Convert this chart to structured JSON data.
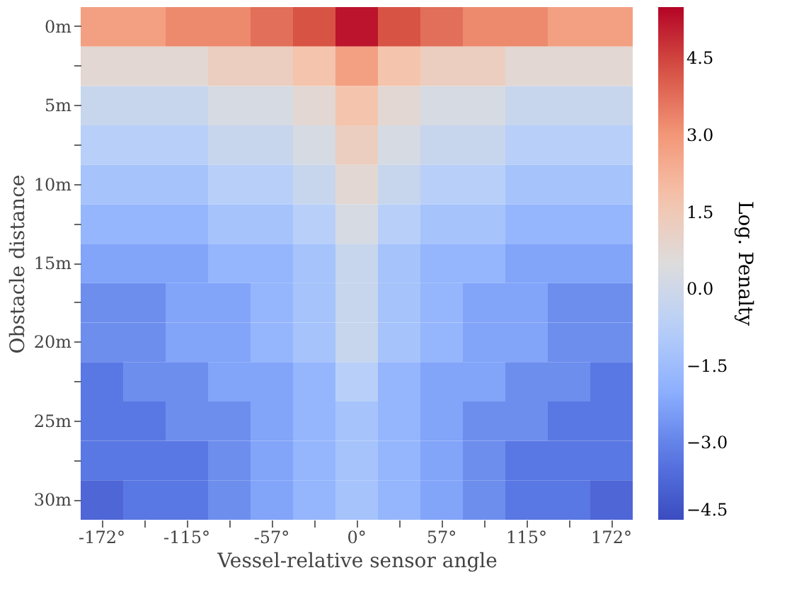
{
  "chart_data": {
    "type": "heatmap",
    "xlabel": "Vessel-relative sensor angle",
    "ylabel": "Obstacle distance",
    "clabel": "Log. Penalty",
    "categories": [
      "-172°",
      null,
      "-115°",
      null,
      "-57°",
      null,
      "0°",
      null,
      "57°",
      null,
      "115°",
      null,
      "172°"
    ],
    "y_categories": [
      "0m",
      null,
      "5m",
      null,
      "10m",
      null,
      "15m",
      null,
      "20m",
      null,
      "25m",
      null,
      "30m"
    ],
    "cells": [
      [
        2.75,
        2.75,
        3.25,
        3.25,
        3.75,
        4.25,
        5.25,
        4.25,
        3.75,
        3.25,
        3.25,
        2.75,
        2.75
      ],
      [
        0.75,
        0.75,
        0.75,
        1.25,
        1.25,
        1.75,
        2.75,
        1.75,
        1.25,
        1.25,
        0.75,
        0.75,
        0.75
      ],
      [
        -0.25,
        -0.25,
        -0.25,
        0.25,
        0.25,
        0.75,
        1.75,
        0.75,
        0.25,
        0.25,
        -0.25,
        -0.25,
        -0.25
      ],
      [
        -0.75,
        -0.75,
        -0.75,
        -0.25,
        -0.25,
        0.25,
        1.25,
        0.25,
        -0.25,
        -0.25,
        -0.75,
        -0.75,
        -0.75
      ],
      [
        -1.25,
        -1.25,
        -1.25,
        -0.75,
        -0.75,
        -0.25,
        0.75,
        -0.25,
        -0.75,
        -0.75,
        -1.25,
        -1.25,
        -1.25
      ],
      [
        -1.75,
        -1.75,
        -1.75,
        -1.25,
        -1.25,
        -0.75,
        0.25,
        -0.75,
        -1.25,
        -1.25,
        -1.75,
        -1.75,
        -1.75
      ],
      [
        -2.25,
        -2.25,
        -2.25,
        -1.75,
        -1.75,
        -1.25,
        -0.25,
        -1.25,
        -1.75,
        -1.75,
        -2.25,
        -2.25,
        -2.25
      ],
      [
        -2.75,
        -2.75,
        -2.25,
        -2.25,
        -1.75,
        -1.25,
        -0.25,
        -1.25,
        -1.75,
        -2.25,
        -2.25,
        -2.75,
        -2.75
      ],
      [
        -2.75,
        -2.75,
        -2.25,
        -2.25,
        -1.75,
        -1.25,
        -0.25,
        -1.25,
        -1.75,
        -2.25,
        -2.25,
        -2.75,
        -2.75
      ],
      [
        -3.25,
        -2.75,
        -2.75,
        -2.25,
        -2.25,
        -1.75,
        -0.75,
        -1.75,
        -2.25,
        -2.25,
        -2.75,
        -2.75,
        -3.25
      ],
      [
        -3.25,
        -3.25,
        -2.75,
        -2.75,
        -2.25,
        -1.75,
        -1.25,
        -1.75,
        -2.25,
        -2.75,
        -2.75,
        -3.25,
        -3.25
      ],
      [
        -3.25,
        -3.25,
        -3.25,
        -2.75,
        -2.25,
        -1.75,
        -1.25,
        -1.75,
        -2.25,
        -2.75,
        -3.25,
        -3.25,
        -3.25
      ],
      [
        -3.75,
        -3.25,
        -3.25,
        -2.75,
        -2.25,
        -1.75,
        -1.25,
        -1.75,
        -2.25,
        -2.75,
        -3.25,
        -3.25,
        -3.75
      ]
    ],
    "clim": [
      -4.5,
      5.5
    ],
    "cticks": [
      {
        "value": -4.5,
        "label": "−4.5"
      },
      {
        "value": -3,
        "label": "−3.0"
      },
      {
        "value": -1.5,
        "label": "−1.5"
      },
      {
        "value": 0,
        "label": "0.0"
      },
      {
        "value": 1.5,
        "label": "1.5"
      },
      {
        "value": 3,
        "label": "3.0"
      },
      {
        "value": 4.5,
        "label": "4.5"
      }
    ]
  }
}
